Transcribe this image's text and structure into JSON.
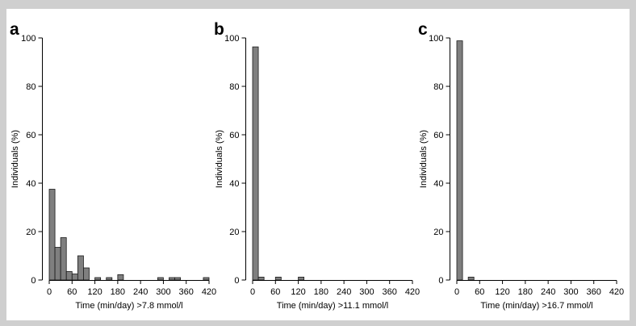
{
  "colors": {
    "background": "#cfcfcf",
    "panel": "#ffffff",
    "bar_fill": "#7f7f7f",
    "bar_stroke": "#1a1a1a"
  },
  "chart_data": [
    {
      "type": "bar",
      "panel_label": "a",
      "xlabel": "Time (min/day) >7.8 mmol/l",
      "ylabel": "Individuals (%)",
      "xlim": [
        0,
        420
      ],
      "ylim": [
        0,
        100
      ],
      "xticks": [
        0,
        60,
        120,
        180,
        240,
        300,
        360,
        420
      ],
      "yticks": [
        0,
        20,
        40,
        60,
        80,
        100
      ],
      "bin_width": 15,
      "x": [
        0,
        15,
        30,
        45,
        60,
        75,
        90,
        120,
        150,
        180,
        285,
        315,
        330,
        405
      ],
      "values": [
        37.5,
        13.5,
        17.5,
        3.5,
        2.5,
        10,
        5,
        1,
        1,
        2.2,
        1,
        1,
        1,
        1
      ]
    },
    {
      "type": "bar",
      "panel_label": "b",
      "xlabel": "Time (min/day) >11.1 mmol/l",
      "ylabel": "Individuals (%)",
      "xlim": [
        0,
        420
      ],
      "ylim": [
        0,
        100
      ],
      "xticks": [
        0,
        60,
        120,
        180,
        240,
        300,
        360,
        420
      ],
      "yticks": [
        0,
        20,
        40,
        60,
        80,
        100
      ],
      "bin_width": 15,
      "x": [
        0,
        15,
        60,
        120
      ],
      "values": [
        96.3,
        1.2,
        1.2,
        1.2
      ]
    },
    {
      "type": "bar",
      "panel_label": "c",
      "xlabel": "Time (min/day) >16.7 mmol/l",
      "ylabel": "Individuals (%)",
      "xlim": [
        0,
        420
      ],
      "ylim": [
        0,
        100
      ],
      "xticks": [
        0,
        60,
        120,
        180,
        240,
        300,
        360,
        420
      ],
      "yticks": [
        0,
        20,
        40,
        60,
        80,
        100
      ],
      "bin_width": 15,
      "x": [
        0,
        30
      ],
      "values": [
        98.8,
        1.2
      ]
    }
  ]
}
